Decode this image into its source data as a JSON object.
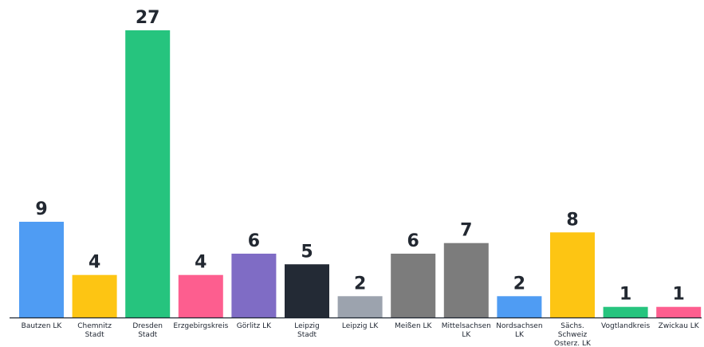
{
  "chart_data": {
    "type": "bar",
    "title": "",
    "xlabel": "",
    "ylabel": "",
    "ylim": [
      0,
      27
    ],
    "grid": false,
    "legend": "none",
    "categories": [
      [
        "Bautzen LK"
      ],
      [
        "Chemnitz",
        "Stadt"
      ],
      [
        "Dresden",
        "Stadt"
      ],
      [
        "Erzgebirgskreis"
      ],
      [
        "Görlitz LK"
      ],
      [
        "Leipzig",
        "Stadt"
      ],
      [
        "Leipzig LK"
      ],
      [
        "Meißen LK"
      ],
      [
        "Mittelsachsen",
        "LK"
      ],
      [
        "Nordsachsen",
        "LK"
      ],
      [
        "Sächs.",
        "Schweiz",
        "Osterz. LK"
      ],
      [
        "Vogtlandkreis"
      ],
      [
        "Zwickau LK"
      ]
    ],
    "values": [
      9,
      4,
      27,
      4,
      6,
      5,
      2,
      6,
      7,
      2,
      8,
      1,
      1
    ],
    "colors": [
      "#4f9cf3",
      "#fdc513",
      "#26c47e",
      "#fd5e8f",
      "#7f6cc5",
      "#232a35",
      "#9ca3ae",
      "#7c7c7c",
      "#7c7c7c",
      "#4f9cf3",
      "#fdc513",
      "#26c47e",
      "#fd5e8f"
    ],
    "axis_color": "#1d2430"
  }
}
